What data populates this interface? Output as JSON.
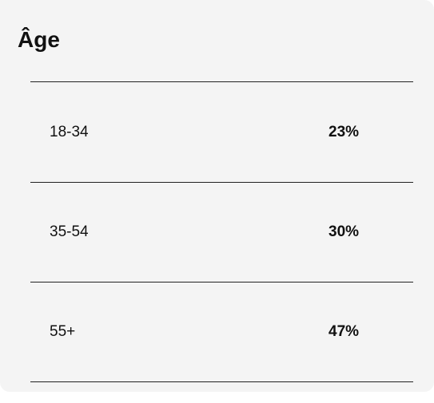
{
  "title": "Âge",
  "table": {
    "rows": [
      [
        "18-34",
        "23%"
      ],
      [
        "35-54",
        "30%"
      ],
      [
        "55+",
        "47%"
      ]
    ]
  }
}
